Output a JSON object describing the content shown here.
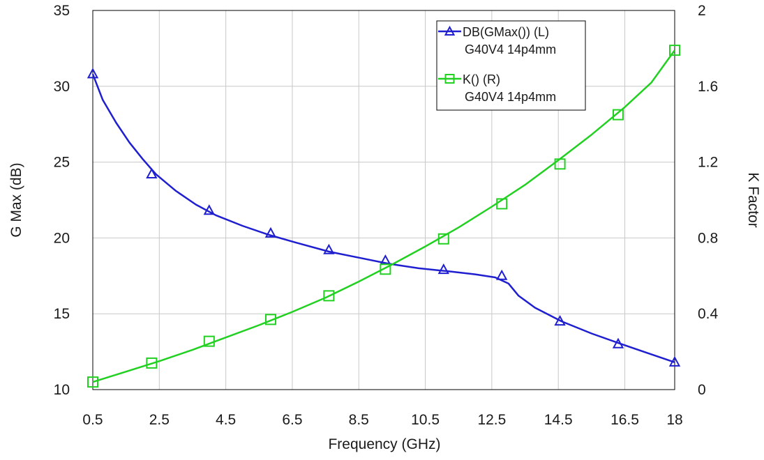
{
  "chart_data": {
    "type": "line",
    "title": "",
    "xlabel": "Frequency (GHz)",
    "ylabel_left": "G Max (dB)",
    "ylabel_right": "K Factor",
    "xlim": [
      0.5,
      18
    ],
    "ylim_left": [
      10,
      35
    ],
    "ylim_right": [
      0,
      2
    ],
    "x_ticks": [
      "0.5",
      "2.5",
      "4.5",
      "6.5",
      "8.5",
      "10.5",
      "12.5",
      "14.5",
      "16.5",
      "18"
    ],
    "x_tick_values": [
      0.5,
      2.5,
      4.5,
      6.5,
      8.5,
      10.5,
      12.5,
      14.5,
      16.5,
      18
    ],
    "y_left_ticks": [
      "10",
      "15",
      "20",
      "25",
      "30",
      "35"
    ],
    "y_left_tick_values": [
      10,
      15,
      20,
      25,
      30,
      35
    ],
    "y_right_ticks": [
      "0",
      "0.4",
      "0.8",
      "1.2",
      "1.6",
      "2"
    ],
    "y_right_tick_values": [
      0,
      0.4,
      0.8,
      1.2,
      1.6,
      2
    ],
    "grid": true,
    "legend_position": "top-right",
    "series": [
      {
        "name": "DB(GMax()) (L)",
        "subname": "G40V4 14p4mm",
        "axis": "left",
        "color": "#1f1fd0",
        "marker": "triangle",
        "x": [
          0.5,
          0.8,
          1.2,
          1.6,
          2.0,
          2.4,
          3.0,
          3.6,
          4.2,
          5.0,
          5.8,
          6.6,
          7.6,
          8.5,
          9.4,
          10.3,
          11.2,
          12.0,
          12.6,
          13.0,
          13.3,
          13.8,
          14.6,
          15.5,
          16.4,
          17.2,
          18.0
        ],
        "y": [
          30.8,
          29.1,
          27.6,
          26.3,
          25.2,
          24.2,
          23.1,
          22.2,
          21.5,
          20.8,
          20.2,
          19.7,
          19.1,
          18.7,
          18.3,
          18.0,
          17.8,
          17.6,
          17.4,
          17.0,
          16.2,
          15.4,
          14.5,
          13.7,
          13.0,
          12.4,
          11.8
        ],
        "marker_x": [
          0.5,
          2.27,
          4.0,
          5.85,
          7.6,
          9.3,
          11.05,
          12.8,
          14.55,
          16.3,
          18.0
        ],
        "marker_y": [
          30.8,
          24.2,
          21.8,
          20.3,
          19.2,
          18.5,
          17.9,
          17.5,
          14.5,
          13.0,
          11.8
        ]
      },
      {
        "name": "K() (R)",
        "subname": "G40V4 14p4mm",
        "axis": "right",
        "color": "#22d022",
        "marker": "square",
        "x": [
          0.5,
          1.5,
          2.5,
          3.5,
          4.5,
          5.5,
          6.5,
          7.5,
          8.5,
          9.5,
          10.5,
          11.5,
          12.5,
          13.5,
          14.5,
          15.5,
          16.5,
          17.3,
          18.0
        ],
        "y": [
          0.04,
          0.095,
          0.15,
          0.21,
          0.275,
          0.34,
          0.41,
          0.485,
          0.57,
          0.66,
          0.755,
          0.855,
          0.965,
          1.08,
          1.21,
          1.345,
          1.49,
          1.62,
          1.79
        ],
        "marker_x": [
          0.5,
          2.27,
          4.0,
          5.85,
          7.6,
          9.3,
          11.05,
          12.8,
          14.55,
          16.3,
          18.0
        ],
        "marker_y": [
          0.04,
          0.14,
          0.255,
          0.37,
          0.495,
          0.635,
          0.795,
          0.98,
          1.19,
          1.45,
          1.79
        ]
      }
    ]
  }
}
